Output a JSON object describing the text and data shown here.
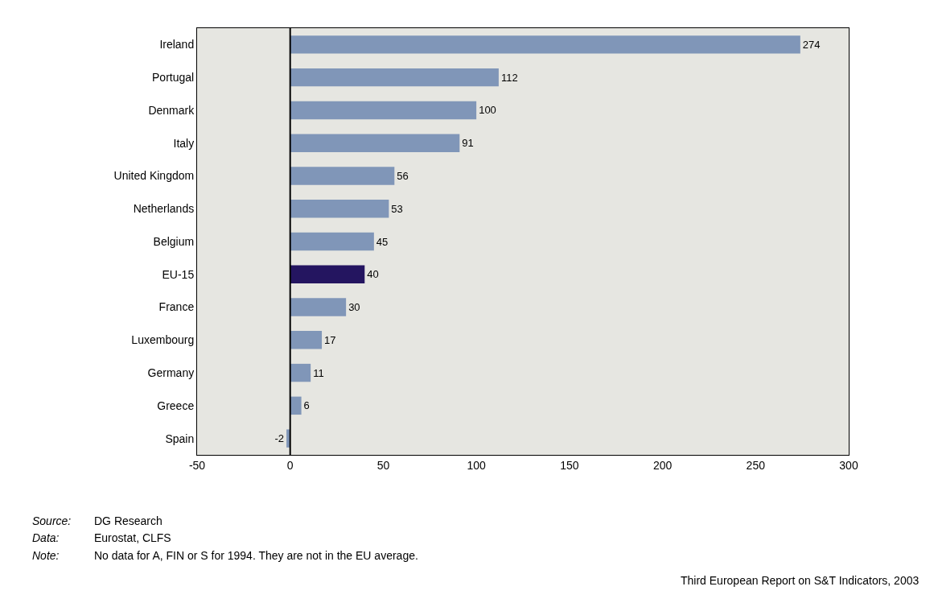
{
  "chart_data": {
    "type": "bar",
    "orientation": "horizontal",
    "categories": [
      "Ireland",
      "Portugal",
      "Denmark",
      "Italy",
      "United Kingdom",
      "Netherlands",
      "Belgium",
      "EU-15",
      "France",
      "Luxembourg",
      "Germany",
      "Greece",
      "Spain"
    ],
    "values": [
      274,
      112,
      100,
      91,
      56,
      53,
      45,
      40,
      30,
      17,
      11,
      6,
      -2
    ],
    "colors": [
      "#8096b8",
      "#8096b8",
      "#8096b8",
      "#8096b8",
      "#8096b8",
      "#8096b8",
      "#8096b8",
      "#241560",
      "#8096b8",
      "#8096b8",
      "#8096b8",
      "#8096b8",
      "#8096b8"
    ],
    "data_labels": true,
    "xlim": [
      -50,
      300
    ],
    "xticks": [
      -50,
      0,
      50,
      100,
      150,
      200,
      250,
      300
    ],
    "grid": false,
    "legend": false,
    "ref_lines": [
      {
        "axis": "x",
        "value": 0,
        "color": "#000000"
      }
    ],
    "annotations": [
      "Source:\tDG Research",
      "Data:\tEurostat, CLFS",
      "Note:\tNo data for A, FIN or S for 1994. They are not in the EU average.",
      "Third European Report on S&T Indicators, 2003"
    ]
  }
}
